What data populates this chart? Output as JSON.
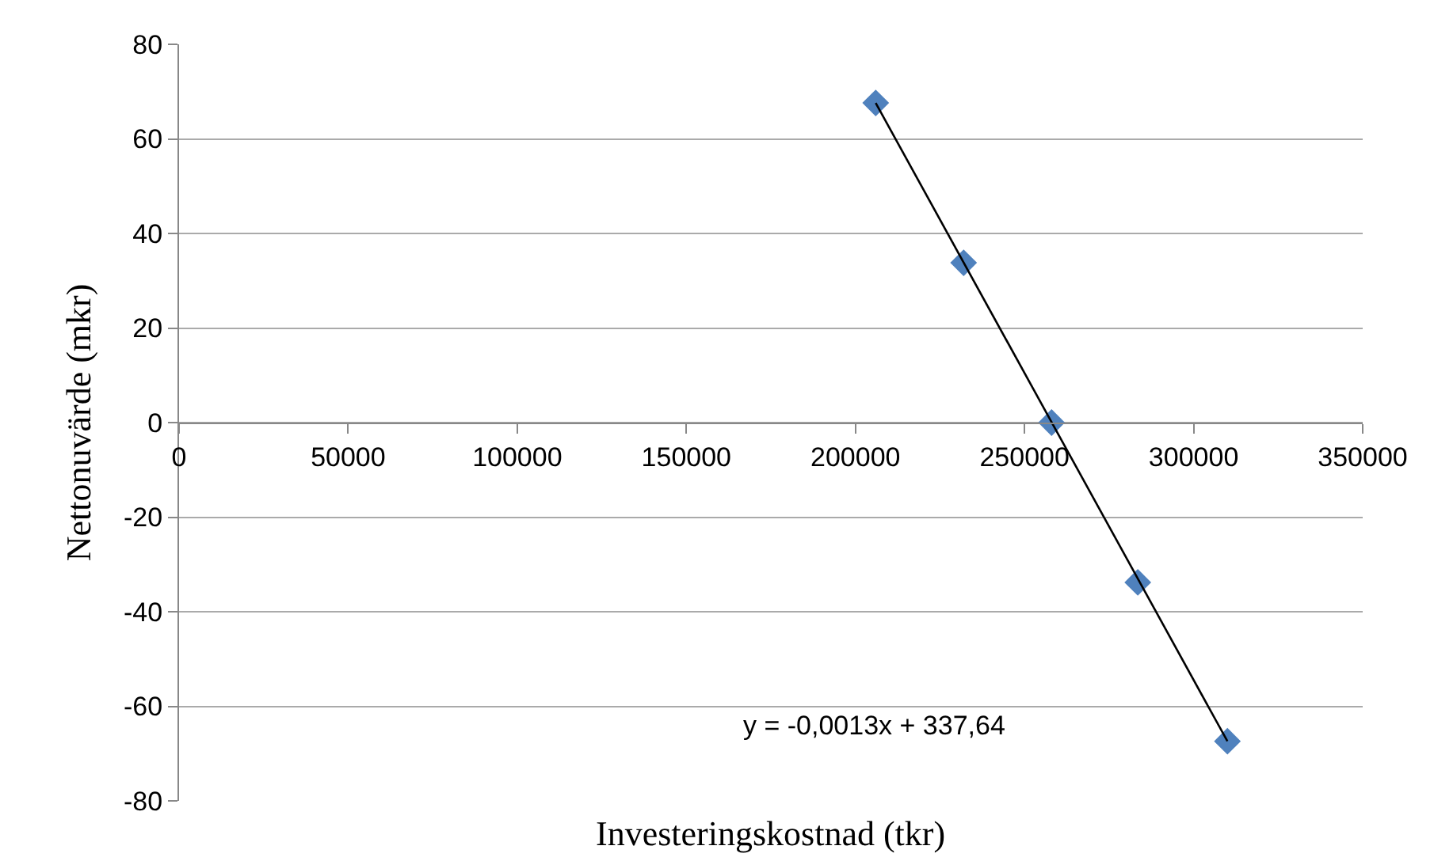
{
  "chart_data": {
    "type": "scatter",
    "xlabel": "Investeringskostnad (tkr)",
    "ylabel": "Nettonuvärde (mkr)",
    "x": [
      206000,
      232000,
      258000,
      283500,
      310000
    ],
    "series": [
      {
        "color": "#4f81bd",
        "marker": "diamond",
        "values": [
          67.6,
          33.8,
          0,
          -33.8,
          -67.4
        ]
      },
      {
        "type": "line",
        "color": "#000000",
        "marker": "none",
        "line_style": "solid",
        "x": [
          206000,
          310000
        ],
        "values": [
          67.6,
          -67.4
        ]
      }
    ],
    "annotations": [
      "y = -0,0013x + 337,64"
    ],
    "xlim": [
      0,
      350000
    ],
    "xticks": [
      0,
      50000,
      100000,
      150000,
      200000,
      250000,
      300000,
      350000
    ],
    "ylim": [
      -80,
      80
    ],
    "yticks": [
      -80,
      -60,
      -40,
      -20,
      0,
      20,
      40,
      60,
      80
    ],
    "grid": "y",
    "legend": false
  }
}
